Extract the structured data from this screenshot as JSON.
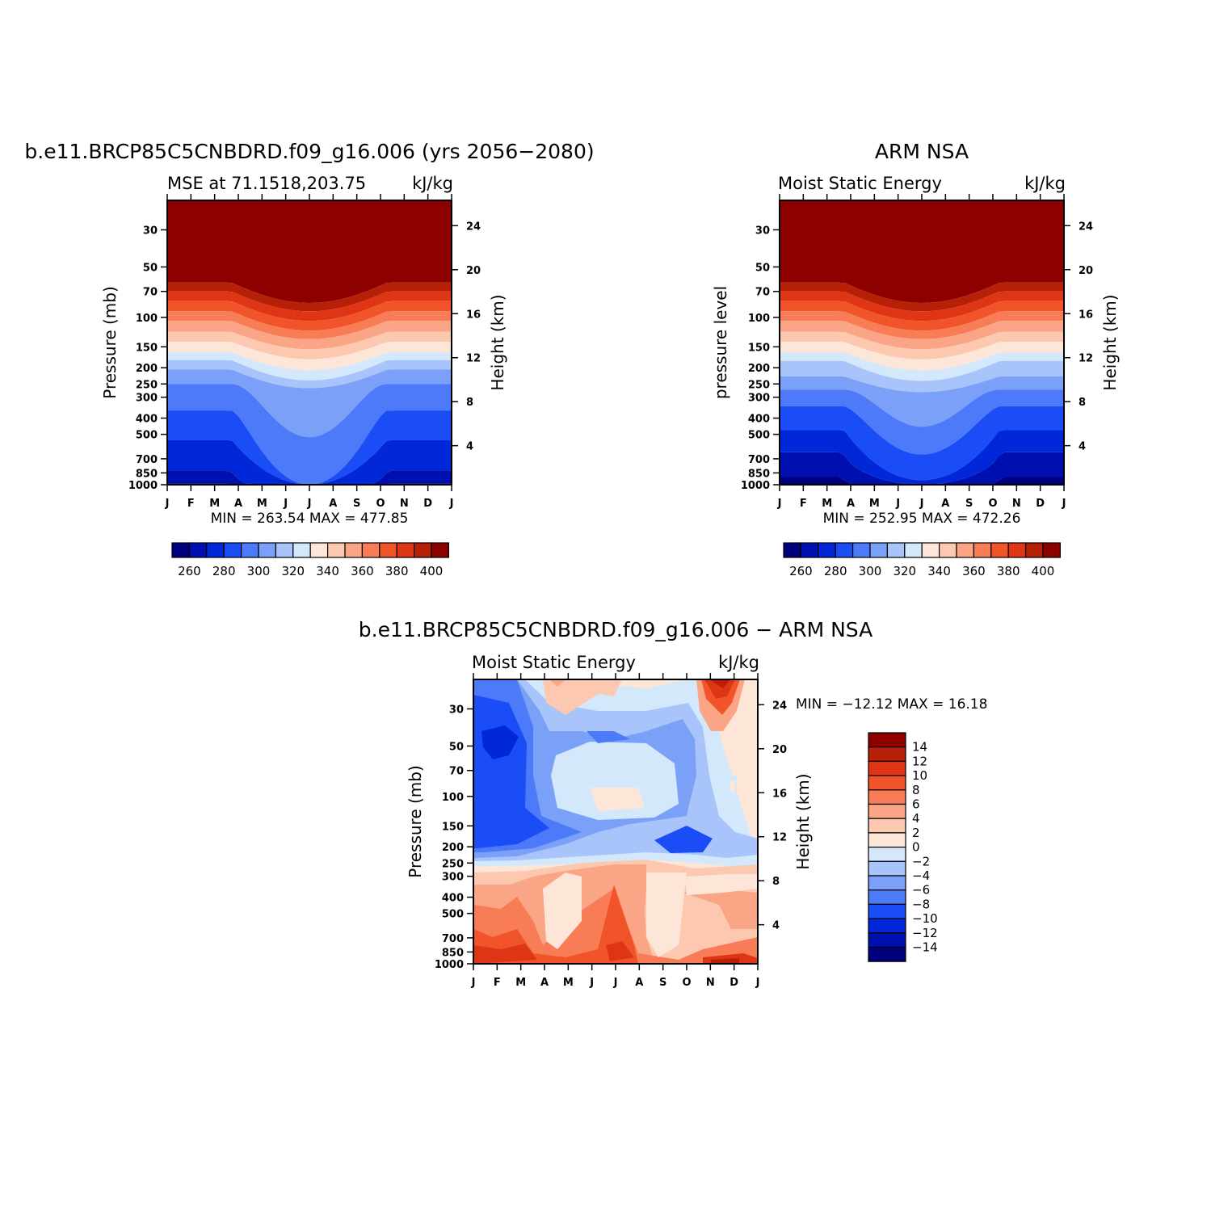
{
  "colors": {
    "levels": [
      "#00007f",
      "#0010b0",
      "#0028d8",
      "#1a4df5",
      "#4d7af8",
      "#7aa0f8",
      "#a8c4fa",
      "#d4e8fc",
      "#fde6d7",
      "#fdc8b0",
      "#fba587",
      "#f87c55",
      "#f2542a",
      "#de3614",
      "#b81f07",
      "#8c0000"
    ],
    "border": "#000000"
  },
  "chart_data": [
    {
      "type": "contour",
      "title": "b.e11.BRCP85C5CNBDRD.f09_g16.006 (yrs 2056−2080)",
      "subtitle_left": "MSE at 71.1518,203.75",
      "subtitle_right": "kJ/kg",
      "ylabel": "Pressure (mb)",
      "ylabel_right": "Height (km)",
      "x_ticks": [
        "J",
        "F",
        "M",
        "A",
        "M",
        "J",
        "J",
        "A",
        "S",
        "O",
        "N",
        "D",
        "J"
      ],
      "pressure_ticks": [
        "30",
        "50",
        "70",
        "100",
        "150",
        "200",
        "250",
        "300",
        "400",
        "500",
        "700",
        "850",
        "1000"
      ],
      "height_ticks": [
        "24",
        "20",
        "16",
        "12",
        "8",
        "4"
      ],
      "stats": "MIN = 263.54  MAX = 477.85",
      "colorbar_labels": [
        "260",
        "280",
        "300",
        "320",
        "340",
        "360",
        "380",
        "400"
      ],
      "contour_levels": [
        255,
        265,
        275,
        285,
        295,
        305,
        315,
        325,
        335,
        345,
        355,
        365,
        375,
        385,
        395
      ],
      "min": 263.54,
      "max": 477.85
    },
    {
      "type": "contour",
      "title": "ARM NSA",
      "subtitle_left": "Moist Static Energy",
      "subtitle_right": "kJ/kg",
      "ylabel": "pressure level",
      "ylabel_right": "Height (km)",
      "x_ticks": [
        "J",
        "F",
        "M",
        "A",
        "M",
        "J",
        "J",
        "A",
        "S",
        "O",
        "N",
        "D",
        "J"
      ],
      "pressure_ticks": [
        "30",
        "50",
        "70",
        "100",
        "150",
        "200",
        "250",
        "300",
        "400",
        "500",
        "700",
        "850",
        "1000"
      ],
      "height_ticks": [
        "24",
        "20",
        "16",
        "12",
        "8",
        "4"
      ],
      "stats": "MIN = 252.95  MAX = 472.26",
      "colorbar_labels": [
        "260",
        "280",
        "300",
        "320",
        "340",
        "360",
        "380",
        "400"
      ],
      "contour_levels": [
        255,
        265,
        275,
        285,
        295,
        305,
        315,
        325,
        335,
        345,
        355,
        365,
        375,
        385,
        395
      ],
      "min": 252.95,
      "max": 472.26
    },
    {
      "type": "contour",
      "title": "b.e11.BRCP85C5CNBDRD.f09_g16.006 − ARM NSA",
      "subtitle_left": "Moist Static Energy",
      "subtitle_right": "kJ/kg",
      "ylabel": "Pressure (mb)",
      "ylabel_right": "Height (km)",
      "x_ticks": [
        "J",
        "F",
        "M",
        "A",
        "M",
        "J",
        "J",
        "A",
        "S",
        "O",
        "N",
        "D",
        "J"
      ],
      "pressure_ticks": [
        "30",
        "50",
        "70",
        "100",
        "150",
        "200",
        "250",
        "300",
        "400",
        "500",
        "700",
        "850",
        "1000"
      ],
      "height_ticks": [
        "24",
        "20",
        "16",
        "12",
        "8",
        "4"
      ],
      "stats": "MIN = −12.12  MAX =   16.18",
      "colorbar_labels": [
        "14",
        "12",
        "10",
        "8",
        "6",
        "4",
        "2",
        "0",
        "−2",
        "−4",
        "−6",
        "−8",
        "−10",
        "−12",
        "−14"
      ],
      "contour_levels": [
        -14,
        -12,
        -10,
        -8,
        -6,
        -4,
        -2,
        0,
        2,
        4,
        6,
        8,
        10,
        12,
        14
      ],
      "min": -12.12,
      "max": 16.18
    }
  ]
}
